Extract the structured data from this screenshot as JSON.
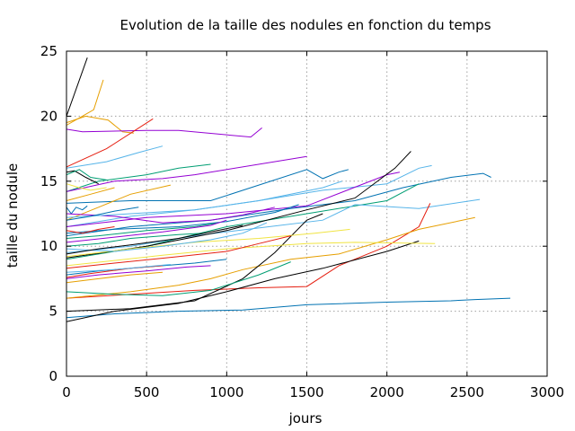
{
  "chart_data": {
    "type": "line",
    "title": "Evolution de la taille des nodules en fonction du temps",
    "xlabel": "jours",
    "ylabel": "taille du nodule",
    "xlim": [
      0,
      3000
    ],
    "ylim": [
      0,
      25
    ],
    "xticks": [
      "0",
      "500",
      "1000",
      "1500",
      "2000",
      "2500",
      "3000"
    ],
    "yticks": [
      "0",
      "5",
      "10",
      "15",
      "20",
      "25"
    ],
    "grid": true,
    "legend": "none",
    "series": [
      {
        "color": "#000000",
        "points": [
          [
            0,
            20
          ],
          [
            130,
            24.5
          ]
        ]
      },
      {
        "color": "#e69f00",
        "points": [
          [
            0,
            19.3
          ],
          [
            170,
            20.5
          ],
          [
            230,
            22.8
          ]
        ]
      },
      {
        "color": "#e69f00",
        "points": [
          [
            0,
            19.5
          ],
          [
            120,
            20
          ],
          [
            260,
            19.7
          ],
          [
            350,
            18.8
          ],
          [
            420,
            18.7
          ]
        ]
      },
      {
        "color": "#9400d3",
        "points": [
          [
            0,
            19
          ],
          [
            100,
            18.8
          ],
          [
            500,
            18.9
          ],
          [
            700,
            18.9
          ],
          [
            1150,
            18.4
          ],
          [
            1220,
            19.1
          ]
        ]
      },
      {
        "color": "#e51e10",
        "points": [
          [
            0,
            16.1
          ],
          [
            250,
            17.5
          ],
          [
            540,
            19.8
          ]
        ]
      },
      {
        "color": "#56b4e9",
        "points": [
          [
            0,
            16
          ],
          [
            250,
            16.5
          ],
          [
            450,
            17.2
          ],
          [
            600,
            17.7
          ]
        ]
      },
      {
        "color": "#009e73",
        "points": [
          [
            0,
            14.2
          ],
          [
            200,
            15
          ],
          [
            500,
            15.5
          ],
          [
            700,
            16
          ],
          [
            900,
            16.3
          ]
        ]
      },
      {
        "color": "#9400d3",
        "points": [
          [
            0,
            14.2
          ],
          [
            300,
            15
          ],
          [
            600,
            15.2
          ],
          [
            800,
            15.5
          ],
          [
            1500,
            16.9
          ]
        ]
      },
      {
        "color": "#0072b2",
        "points": [
          [
            0,
            13.3
          ],
          [
            400,
            13.5
          ],
          [
            900,
            13.5
          ],
          [
            1500,
            15.9
          ],
          [
            1600,
            15.2
          ],
          [
            1700,
            15.7
          ],
          [
            1760,
            15.9
          ]
        ]
      },
      {
        "color": "#e69f00",
        "points": [
          [
            0,
            12
          ],
          [
            200,
            13
          ],
          [
            400,
            14
          ],
          [
            650,
            14.7
          ]
        ]
      },
      {
        "color": "#000000",
        "points": [
          [
            0,
            15.7
          ],
          [
            50,
            15.8
          ],
          [
            120,
            15.3
          ],
          [
            200,
            14.8
          ]
        ]
      },
      {
        "color": "#009e73",
        "points": [
          [
            0,
            15.5
          ],
          [
            80,
            15.9
          ],
          [
            150,
            15.3
          ],
          [
            250,
            15.1
          ]
        ]
      },
      {
        "color": "#56b4e9",
        "points": [
          [
            0,
            11.5
          ],
          [
            400,
            12.3
          ],
          [
            800,
            12.8
          ],
          [
            1200,
            13.5
          ],
          [
            1600,
            14.3
          ],
          [
            2000,
            14.8
          ],
          [
            2200,
            16
          ],
          [
            2280,
            16.2
          ]
        ]
      },
      {
        "color": "#0072b2",
        "points": [
          [
            0,
            10.8
          ],
          [
            400,
            11.5
          ],
          [
            900,
            12
          ],
          [
            1400,
            12.9
          ],
          [
            1800,
            13.5
          ],
          [
            2100,
            14.5
          ],
          [
            2400,
            15.3
          ],
          [
            2600,
            15.6
          ],
          [
            2650,
            15.3
          ]
        ]
      },
      {
        "color": "#9400d3",
        "points": [
          [
            0,
            11.5
          ],
          [
            500,
            12.2
          ],
          [
            1000,
            12.5
          ],
          [
            1500,
            13.1
          ],
          [
            2000,
            15.5
          ],
          [
            2080,
            15.7
          ]
        ]
      },
      {
        "color": "#009e73",
        "points": [
          [
            0,
            9
          ],
          [
            500,
            10
          ],
          [
            1000,
            11.5
          ],
          [
            1500,
            12.5
          ],
          [
            2000,
            13.5
          ],
          [
            2200,
            14.8
          ]
        ]
      },
      {
        "color": "#56b4e9",
        "points": [
          [
            0,
            9.5
          ],
          [
            400,
            10
          ],
          [
            800,
            10.8
          ],
          [
            1200,
            11.4
          ],
          [
            1600,
            12
          ],
          [
            1800,
            13.2
          ],
          [
            2200,
            12.9
          ],
          [
            2580,
            13.6
          ]
        ]
      },
      {
        "color": "#000000",
        "points": [
          [
            0,
            9.1
          ],
          [
            500,
            10
          ],
          [
            1000,
            11.2
          ],
          [
            1500,
            12.8
          ],
          [
            1800,
            13.7
          ],
          [
            2050,
            16
          ],
          [
            2150,
            17.3
          ]
        ]
      },
      {
        "color": "#e51e10",
        "points": [
          [
            0,
            6
          ],
          [
            400,
            6.3
          ],
          [
            800,
            6.6
          ],
          [
            1200,
            6.8
          ],
          [
            1500,
            6.9
          ],
          [
            1700,
            8.5
          ],
          [
            2000,
            10
          ],
          [
            2200,
            11.5
          ],
          [
            2270,
            13.3
          ]
        ]
      },
      {
        "color": "#e69f00",
        "points": [
          [
            0,
            6
          ],
          [
            400,
            6.5
          ],
          [
            700,
            7
          ],
          [
            900,
            7.5
          ],
          [
            1100,
            8.2
          ],
          [
            1400,
            9
          ],
          [
            1700,
            9.4
          ],
          [
            2000,
            10.5
          ],
          [
            2200,
            11.3
          ],
          [
            2550,
            12.2
          ]
        ]
      },
      {
        "color": "#0072b2",
        "points": [
          [
            0,
            4.5
          ],
          [
            300,
            4.8
          ],
          [
            700,
            5
          ],
          [
            1100,
            5.1
          ],
          [
            1500,
            5.5
          ],
          [
            2000,
            5.7
          ],
          [
            2400,
            5.8
          ],
          [
            2550,
            5.9
          ],
          [
            2770,
            6
          ]
        ]
      },
      {
        "color": "#000000",
        "points": [
          [
            0,
            4.2
          ],
          [
            300,
            5
          ],
          [
            700,
            5.6
          ],
          [
            1000,
            6.5
          ],
          [
            1300,
            7.5
          ],
          [
            1600,
            8.3
          ],
          [
            2000,
            9.6
          ],
          [
            2200,
            10.4
          ]
        ]
      },
      {
        "color": "#000000",
        "points": [
          [
            0,
            5
          ],
          [
            400,
            5.2
          ],
          [
            800,
            5.8
          ],
          [
            1100,
            7.5
          ],
          [
            1300,
            9.5
          ],
          [
            1500,
            12
          ],
          [
            1600,
            12.5
          ]
        ]
      },
      {
        "color": "#f0e442",
        "points": [
          [
            0,
            8.5
          ],
          [
            300,
            8.9
          ],
          [
            600,
            9.3
          ],
          [
            1000,
            9.8
          ],
          [
            1500,
            10.2
          ],
          [
            1800,
            10.3
          ],
          [
            2300,
            10.2
          ]
        ]
      },
      {
        "color": "#f0e442",
        "points": [
          [
            0,
            9.2
          ],
          [
            400,
            9.8
          ],
          [
            800,
            10.3
          ],
          [
            1200,
            10.6
          ],
          [
            1550,
            11
          ],
          [
            1770,
            11.3
          ]
        ]
      },
      {
        "color": "#0072b2",
        "points": [
          [
            0,
            13
          ],
          [
            30,
            12.5
          ],
          [
            60,
            13
          ],
          [
            100,
            12.8
          ],
          [
            130,
            13.1
          ]
        ]
      },
      {
        "color": "#9400d3",
        "points": [
          [
            0,
            12.5
          ],
          [
            300,
            12.3
          ],
          [
            600,
            11.8
          ],
          [
            900,
            12
          ],
          [
            1100,
            12.4
          ],
          [
            1300,
            13
          ]
        ]
      },
      {
        "color": "#56b4e9",
        "points": [
          [
            0,
            12.2
          ],
          [
            400,
            12.5
          ],
          [
            800,
            12.8
          ],
          [
            1200,
            13.5
          ],
          [
            1600,
            14.5
          ],
          [
            1720,
            15
          ]
        ]
      },
      {
        "color": "#0072b2",
        "points": [
          [
            0,
            11
          ],
          [
            300,
            11.3
          ],
          [
            700,
            11.5
          ],
          [
            1000,
            11.9
          ],
          [
            1300,
            12.6
          ],
          [
            1450,
            13.2
          ]
        ]
      },
      {
        "color": "#e51e10",
        "points": [
          [
            0,
            8.3
          ],
          [
            300,
            8.7
          ],
          [
            700,
            9.2
          ],
          [
            1000,
            9.6
          ],
          [
            1200,
            10.2
          ],
          [
            1400,
            10.8
          ]
        ]
      },
      {
        "color": "#009e73",
        "points": [
          [
            0,
            10.6
          ],
          [
            200,
            10.8
          ],
          [
            500,
            11.2
          ],
          [
            800,
            11.5
          ],
          [
            950,
            11.8
          ]
        ]
      },
      {
        "color": "#56b4e9",
        "points": [
          [
            0,
            9.8
          ],
          [
            300,
            9.6
          ],
          [
            600,
            10
          ],
          [
            900,
            10.5
          ],
          [
            1100,
            11
          ],
          [
            1250,
            11.8
          ]
        ]
      },
      {
        "color": "#0072b2",
        "points": [
          [
            0,
            7.8
          ],
          [
            200,
            8.1
          ],
          [
            500,
            8.4
          ],
          [
            800,
            8.7
          ],
          [
            1000,
            9
          ]
        ]
      },
      {
        "color": "#9400d3",
        "points": [
          [
            0,
            7.5
          ],
          [
            200,
            7.8
          ],
          [
            500,
            8.1
          ],
          [
            750,
            8.4
          ],
          [
            900,
            8.5
          ]
        ]
      },
      {
        "color": "#009e73",
        "points": [
          [
            0,
            6.5
          ],
          [
            300,
            6.3
          ],
          [
            600,
            6.2
          ],
          [
            900,
            6.6
          ],
          [
            1200,
            7.8
          ],
          [
            1400,
            8.8
          ]
        ]
      },
      {
        "color": "#e51e10",
        "points": [
          [
            0,
            7.6
          ],
          [
            150,
            7.9
          ],
          [
            400,
            8.3
          ],
          [
            600,
            8.5
          ]
        ]
      },
      {
        "color": "#56b4e9",
        "points": [
          [
            0,
            8
          ],
          [
            300,
            8.2
          ],
          [
            650,
            8.6
          ]
        ]
      },
      {
        "color": "#e69f00",
        "points": [
          [
            0,
            7.2
          ],
          [
            200,
            7.5
          ],
          [
            400,
            7.8
          ],
          [
            600,
            8
          ]
        ]
      },
      {
        "color": "#0072b2",
        "points": [
          [
            0,
            12
          ],
          [
            150,
            12.3
          ],
          [
            300,
            12.7
          ],
          [
            450,
            13
          ]
        ]
      },
      {
        "color": "#e51e10",
        "points": [
          [
            0,
            11.2
          ],
          [
            100,
            11
          ],
          [
            200,
            11.3
          ],
          [
            300,
            11.5
          ]
        ]
      },
      {
        "color": "#f0e442",
        "points": [
          [
            0,
            14.8
          ],
          [
            80,
            14.5
          ],
          [
            150,
            14.3
          ],
          [
            250,
            14.5
          ]
        ]
      },
      {
        "color": "#e69f00",
        "points": [
          [
            0,
            13.5
          ],
          [
            150,
            14
          ],
          [
            300,
            14.5
          ]
        ]
      },
      {
        "color": "#009e73",
        "points": [
          [
            0,
            10
          ],
          [
            200,
            10.2
          ],
          [
            400,
            10.6
          ],
          [
            700,
            10.9
          ],
          [
            850,
            11
          ]
        ]
      },
      {
        "color": "#9400d3",
        "points": [
          [
            0,
            10.3
          ],
          [
            300,
            10.7
          ],
          [
            600,
            11.1
          ],
          [
            900,
            11.6
          ],
          [
            1000,
            12
          ]
        ]
      },
      {
        "color": "#000000",
        "points": [
          [
            0,
            9.4
          ],
          [
            200,
            9.8
          ],
          [
            400,
            10.1
          ],
          [
            700,
            10.6
          ],
          [
            1100,
            11.6
          ]
        ]
      }
    ]
  }
}
